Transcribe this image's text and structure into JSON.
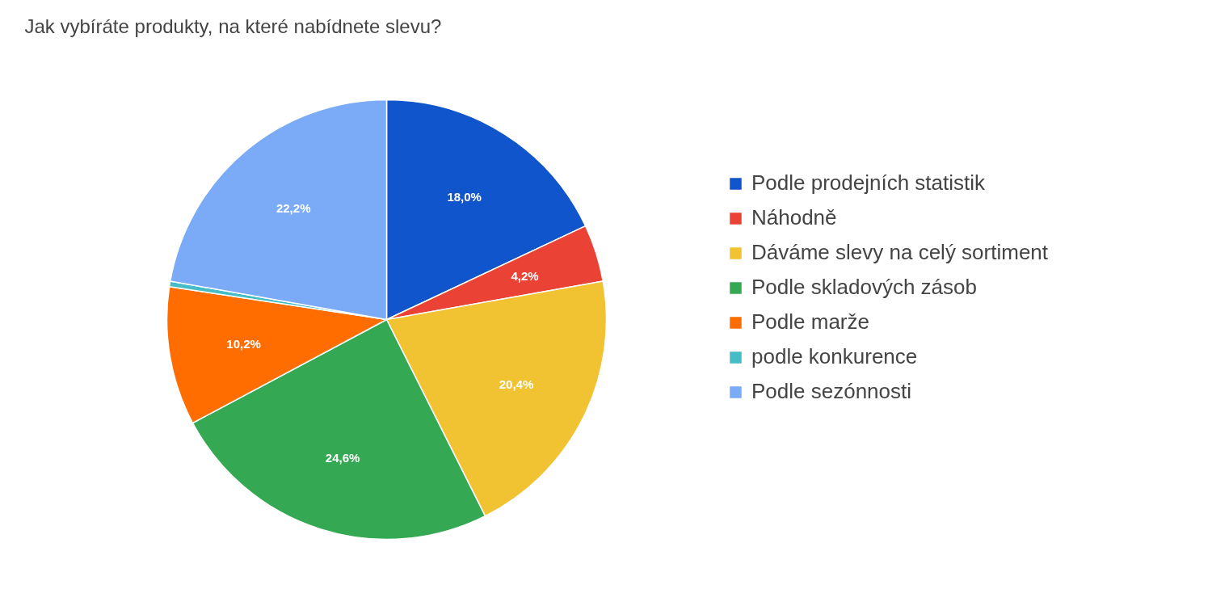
{
  "chart_data": {
    "type": "pie",
    "title": "Jak vybíráte produkty, na které nabídnete slevu?",
    "categories": [
      "Podle prodejních statistik",
      "Náhodně",
      "Dáváme slevy na celý sortiment",
      "Podle skladových zásob",
      "Podle marže",
      "podle konkurence",
      "Podle sezónnosti"
    ],
    "values": [
      18.0,
      4.2,
      20.4,
      24.6,
      10.2,
      0.4,
      22.2
    ],
    "value_labels": [
      "18,0%",
      "4,2%",
      "20,4%",
      "24,6%",
      "10,2%",
      null,
      "22,2%"
    ],
    "colors": [
      "#1155cc",
      "#ea4335",
      "#f1c232",
      "#34a853",
      "#ff6d01",
      "#46bdc6",
      "#7baaf7"
    ],
    "legend": "right"
  }
}
